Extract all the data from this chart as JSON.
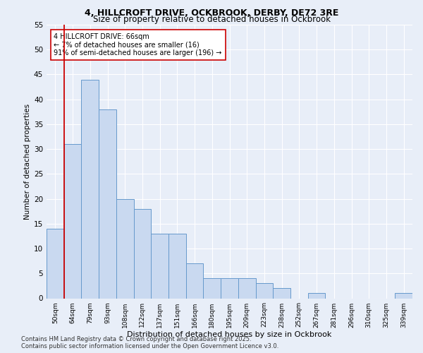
{
  "title_line1": "4, HILLCROFT DRIVE, OCKBROOK, DERBY, DE72 3RE",
  "title_line2": "Size of property relative to detached houses in Ockbrook",
  "xlabel": "Distribution of detached houses by size in Ockbrook",
  "ylabel": "Number of detached properties",
  "categories": [
    "50sqm",
    "64sqm",
    "79sqm",
    "93sqm",
    "108sqm",
    "122sqm",
    "137sqm",
    "151sqm",
    "166sqm",
    "180sqm",
    "195sqm",
    "209sqm",
    "223sqm",
    "238sqm",
    "252sqm",
    "267sqm",
    "281sqm",
    "296sqm",
    "310sqm",
    "325sqm",
    "339sqm"
  ],
  "values": [
    14,
    31,
    44,
    38,
    20,
    18,
    13,
    13,
    7,
    4,
    4,
    4,
    3,
    2,
    0,
    1,
    0,
    0,
    0,
    0,
    1
  ],
  "bar_color": "#c9d9f0",
  "bar_edge_color": "#6699cc",
  "vline_x_index": 1,
  "vline_color": "#cc0000",
  "annotation_text": "4 HILLCROFT DRIVE: 66sqm\n← 7% of detached houses are smaller (16)\n91% of semi-detached houses are larger (196) →",
  "annotation_box_color": "#ffffff",
  "annotation_box_edge": "#cc0000",
  "background_color": "#e8eef8",
  "plot_bg_color": "#e8eef8",
  "grid_color": "#ffffff",
  "ylim": [
    0,
    55
  ],
  "yticks": [
    0,
    5,
    10,
    15,
    20,
    25,
    30,
    35,
    40,
    45,
    50,
    55
  ],
  "footer_line1": "Contains HM Land Registry data © Crown copyright and database right 2025.",
  "footer_line2": "Contains public sector information licensed under the Open Government Licence v3.0."
}
